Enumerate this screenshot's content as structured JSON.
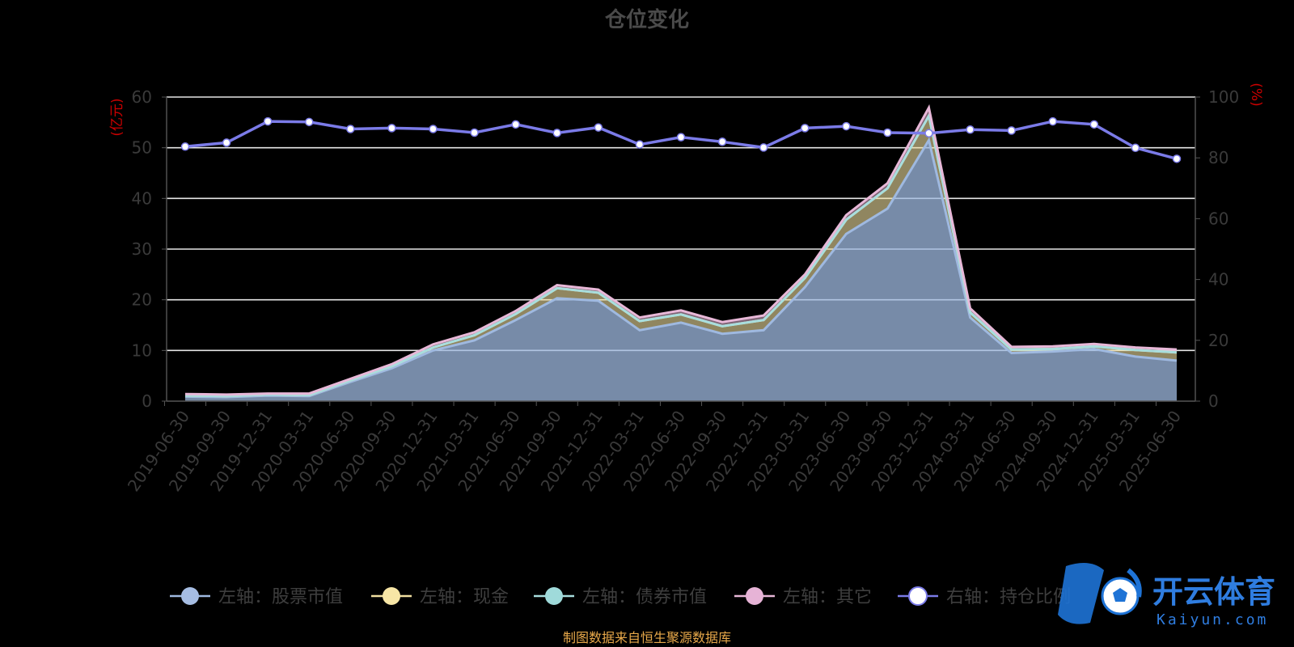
{
  "chart_data": {
    "type": "area",
    "title": "仓位变化",
    "y_left_unit": "(亿元)",
    "y_right_unit": "(%)",
    "y_left_ticks": [
      0,
      10,
      20,
      30,
      40,
      50,
      60
    ],
    "y_right_ticks": [
      0,
      20,
      40,
      60,
      80,
      100
    ],
    "ylim_left": [
      0,
      60
    ],
    "ylim_right": [
      0,
      100
    ],
    "grid": true,
    "legend_position": "bottom",
    "categories": [
      "2019-06-30",
      "2019-09-30",
      "2019-12-31",
      "2020-03-31",
      "2020-06-30",
      "2020-09-30",
      "2020-12-31",
      "2021-03-31",
      "2021-06-30",
      "2021-09-30",
      "2021-12-31",
      "2022-03-31",
      "2022-06-30",
      "2022-09-30",
      "2022-12-31",
      "2023-03-31",
      "2023-06-30",
      "2023-09-30",
      "2023-12-31",
      "2024-03-31",
      "2024-06-30",
      "2024-09-30",
      "2024-12-31",
      "2025-03-31",
      "2025-06-30"
    ],
    "series": [
      {
        "name": "左轴：股票市值",
        "axis": "left",
        "color": "#9fb9e0",
        "marker": "#a6bde3",
        "values": [
          0.9,
          0.8,
          1.1,
          1.0,
          3.8,
          6.5,
          10.0,
          12.0,
          16.0,
          20.3,
          19.8,
          14.0,
          15.5,
          13.3,
          14.0,
          22.5,
          33.0,
          38.0,
          51.5,
          16.5,
          9.5,
          9.8,
          10.3,
          8.8,
          8.0
        ]
      },
      {
        "name": "左轴：现金",
        "axis": "left",
        "color": "#f0dfa0",
        "marker": "#f7e6a6",
        "values": [
          0.2,
          0.2,
          0.2,
          0.2,
          0.3,
          0.4,
          0.6,
          1.0,
          1.2,
          2.0,
          1.6,
          1.8,
          1.6,
          1.5,
          2.0,
          1.8,
          2.8,
          4.0,
          4.8,
          1.0,
          0.7,
          0.5,
          0.5,
          1.3,
          1.6
        ]
      },
      {
        "name": "左轴：债券市值",
        "axis": "left",
        "color": "#a8dede",
        "marker": "#9fdada",
        "values": [
          0.0,
          0.0,
          0.0,
          0.0,
          0.0,
          0.0,
          0.0,
          0.0,
          0.0,
          0.0,
          0.0,
          0.0,
          0.0,
          0.0,
          0.0,
          0.0,
          0.0,
          0.0,
          0.0,
          0.0,
          0.0,
          0.0,
          0.0,
          0.0,
          0.0
        ]
      },
      {
        "name": "左轴：其它",
        "axis": "left",
        "color": "#e8b8d8",
        "marker": "#e6b3d6",
        "values": [
          0.3,
          0.3,
          0.2,
          0.3,
          0.3,
          0.4,
          0.6,
          0.6,
          0.6,
          0.6,
          0.6,
          0.7,
          0.8,
          0.8,
          0.9,
          0.7,
          0.9,
          1.0,
          1.6,
          0.8,
          0.5,
          0.5,
          0.5,
          0.5,
          0.6
        ]
      },
      {
        "name": "右轴：持仓比例",
        "axis": "right",
        "color": "#7b7be8",
        "marker": "#ffffff",
        "values": [
          83.7,
          85.0,
          92.0,
          91.8,
          89.5,
          89.8,
          89.5,
          88.3,
          91.0,
          88.2,
          90.0,
          84.4,
          86.8,
          85.3,
          83.4,
          89.8,
          90.4,
          88.3,
          88.1,
          89.3,
          89.0,
          92.0,
          91.0,
          83.3,
          79.7
        ]
      }
    ]
  },
  "footer_text": "制图数据来自恒生聚源数据库",
  "watermark": {
    "name": "开云体育",
    "url": "Kaiyun.com",
    "icon": "soccer-ball-icon"
  }
}
